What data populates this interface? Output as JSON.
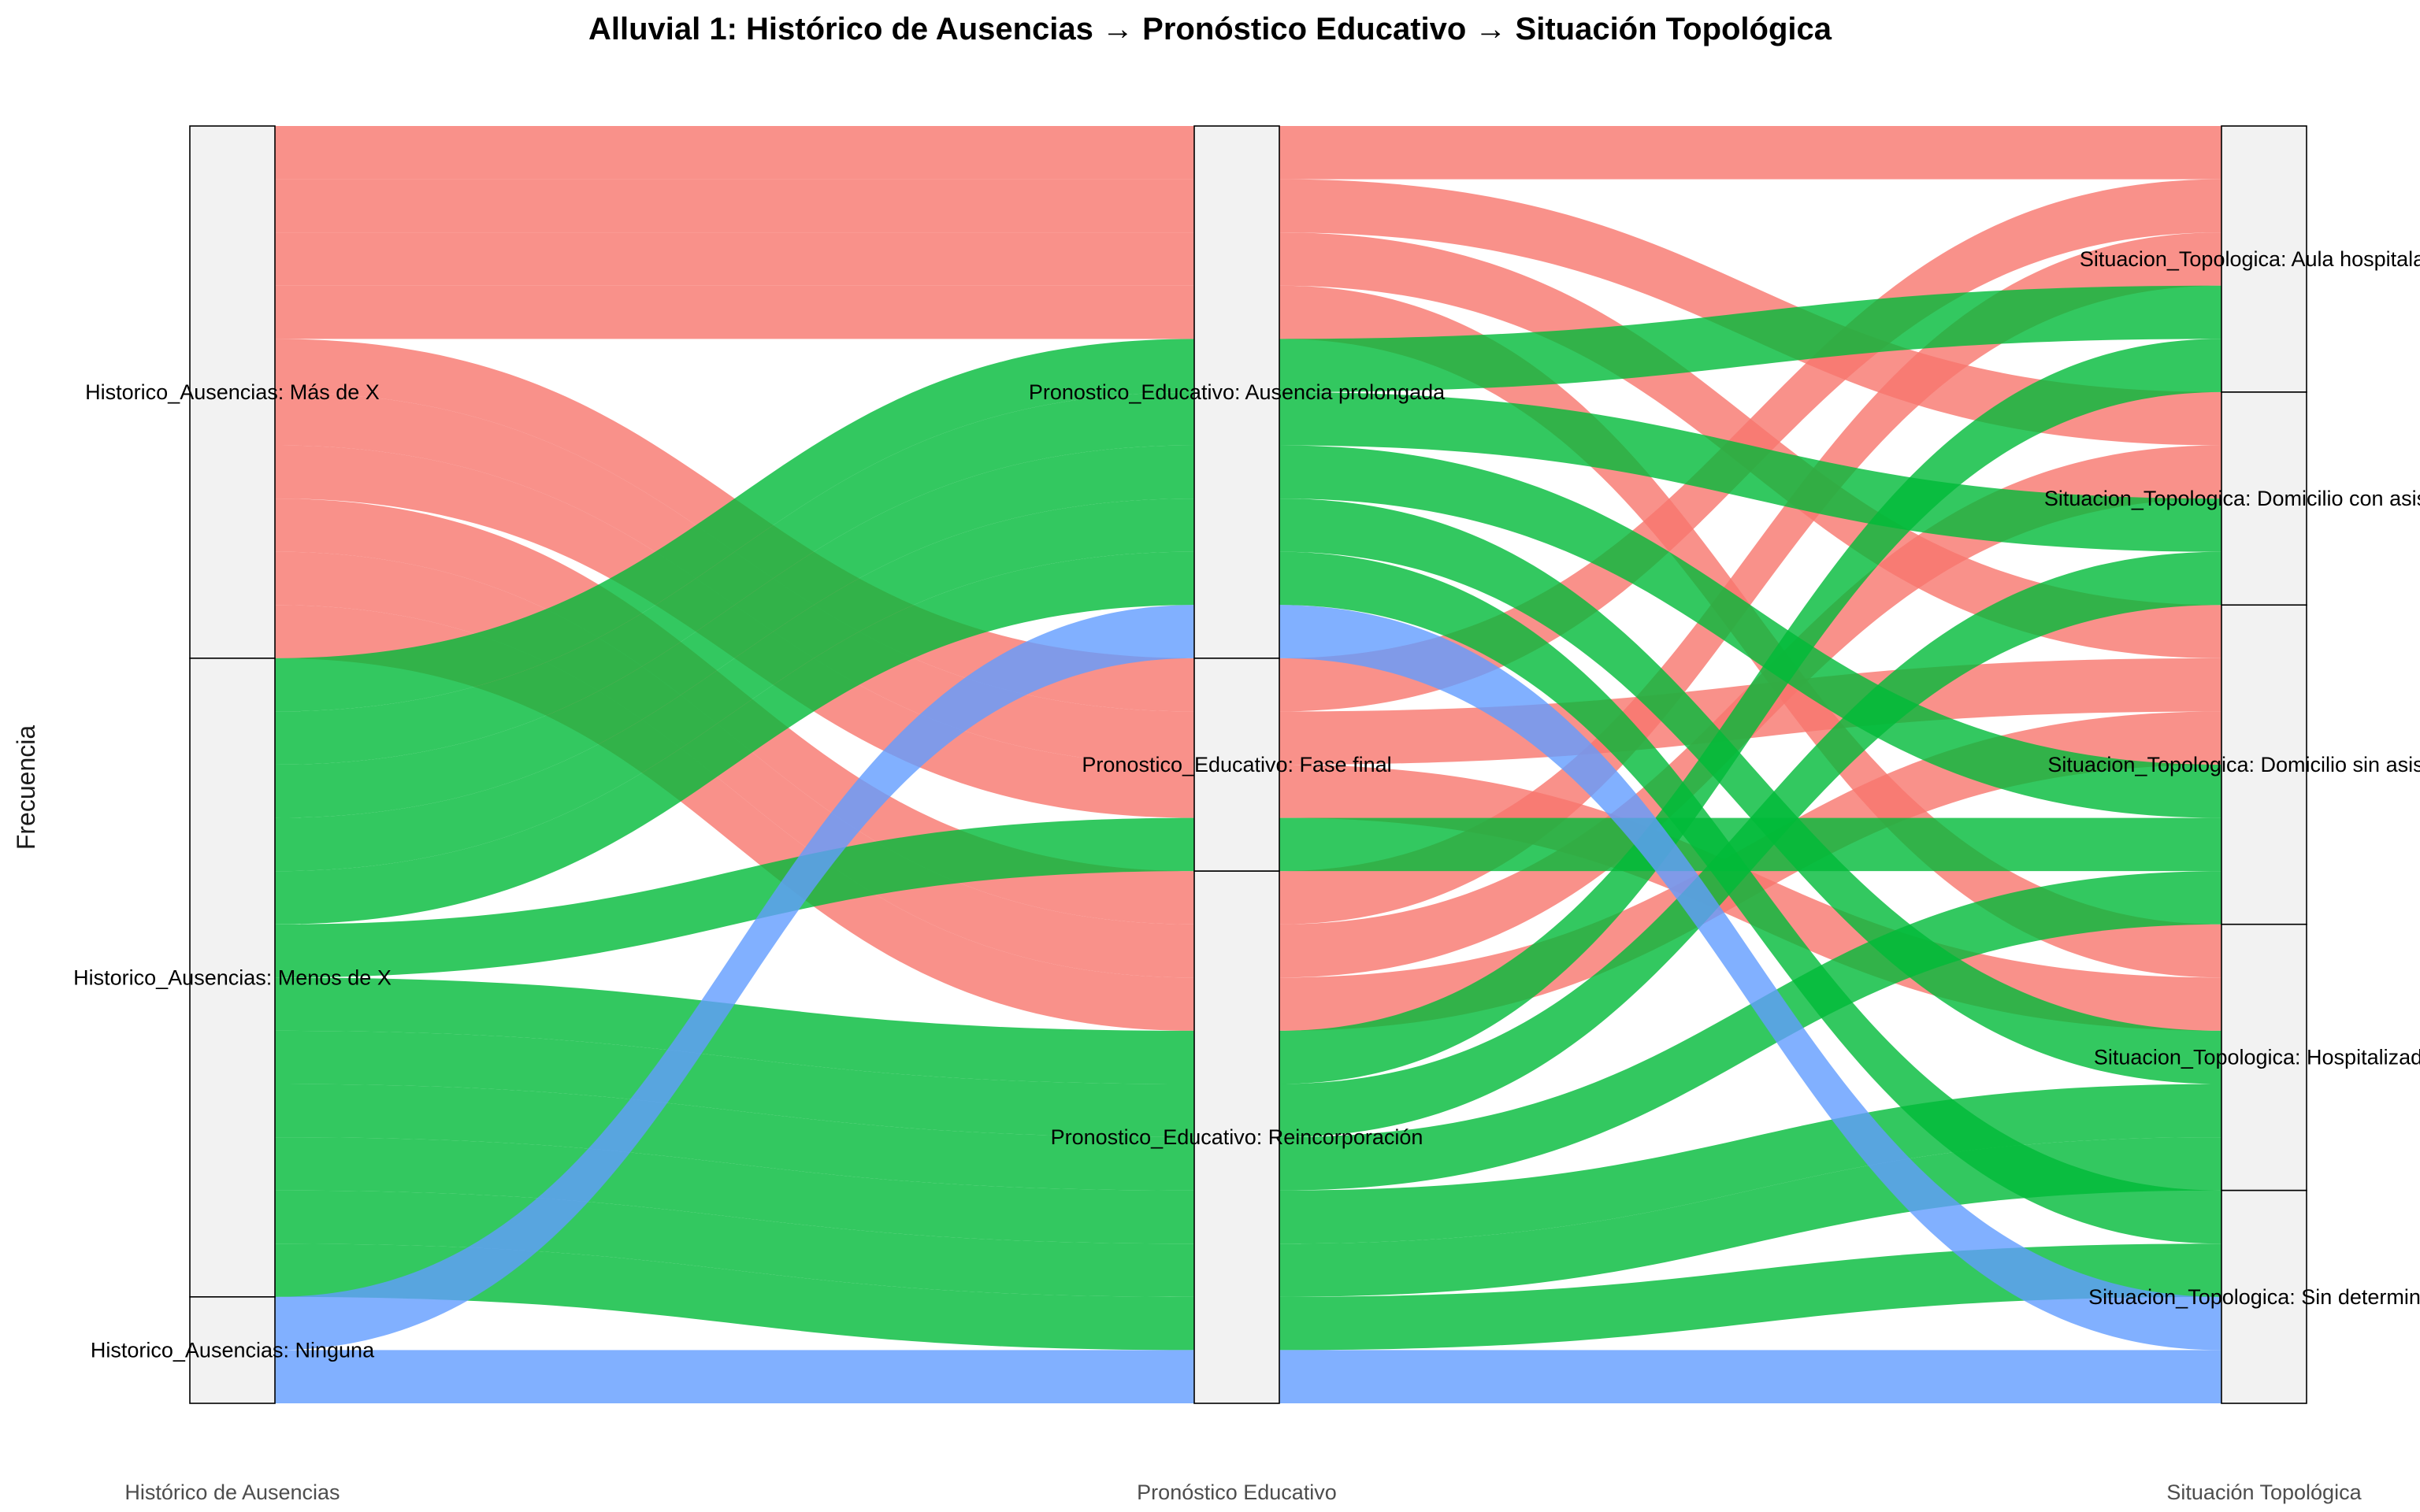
{
  "chart_data": {
    "type": "alluvial",
    "title": "Alluvial 1: Histórico de Ausencias → Pronóstico Educativo → Situación Topológica",
    "ylabel": "Frecuencia",
    "axes": [
      "Histórico de Ausencias",
      "Pronóstico Educativo",
      "Situación Topológica"
    ],
    "strata": [
      [
        "Historico_Ausencias: Más de X",
        "Historico_Ausencias: Menos de X",
        "Historico_Ausencias: Ninguna"
      ],
      [
        "Pronostico_Educativo: Ausencia prolongada",
        "Pronostico_Educativo: Fase final",
        "Pronostico_Educativo: Reincorporación"
      ],
      [
        "Situacion_Topologica: Aula hospitalaria",
        "Situacion_Topologica: Domicilio con asistencia",
        "Situacion_Topologica: Domicilio sin asistencia",
        "Situacion_Topologica: Hospitalizado",
        "Situacion_Topologica: Sin determinar"
      ]
    ],
    "colors": {
      "Más de X": "#F8766D",
      "Menos de X": "#00BA38",
      "Ninguna": "#619CFF"
    },
    "flows": [
      {
        "group": "Más de X",
        "path": [
          0,
          0,
          0
        ],
        "value": 1
      },
      {
        "group": "Más de X",
        "path": [
          0,
          0,
          1
        ],
        "value": 1
      },
      {
        "group": "Más de X",
        "path": [
          0,
          0,
          2
        ],
        "value": 1
      },
      {
        "group": "Más de X",
        "path": [
          0,
          0,
          3
        ],
        "value": 1
      },
      {
        "group": "Más de X",
        "path": [
          0,
          1,
          0
        ],
        "value": 1
      },
      {
        "group": "Más de X",
        "path": [
          0,
          1,
          2
        ],
        "value": 1
      },
      {
        "group": "Más de X",
        "path": [
          0,
          1,
          3
        ],
        "value": 1
      },
      {
        "group": "Más de X",
        "path": [
          0,
          2,
          0
        ],
        "value": 1
      },
      {
        "group": "Más de X",
        "path": [
          0,
          2,
          1
        ],
        "value": 1
      },
      {
        "group": "Más de X",
        "path": [
          0,
          2,
          2
        ],
        "value": 1
      },
      {
        "group": "Menos de X",
        "path": [
          1,
          0,
          0
        ],
        "value": 1
      },
      {
        "group": "Menos de X",
        "path": [
          1,
          0,
          1
        ],
        "value": 1
      },
      {
        "group": "Menos de X",
        "path": [
          1,
          0,
          2
        ],
        "value": 1
      },
      {
        "group": "Menos de X",
        "path": [
          1,
          0,
          3
        ],
        "value": 1
      },
      {
        "group": "Menos de X",
        "path": [
          1,
          0,
          4
        ],
        "value": 1
      },
      {
        "group": "Menos de X",
        "path": [
          1,
          1,
          2
        ],
        "value": 1
      },
      {
        "group": "Menos de X",
        "path": [
          1,
          2,
          0
        ],
        "value": 1
      },
      {
        "group": "Menos de X",
        "path": [
          1,
          2,
          1
        ],
        "value": 1
      },
      {
        "group": "Menos de X",
        "path": [
          1,
          2,
          2
        ],
        "value": 1
      },
      {
        "group": "Menos de X",
        "path": [
          1,
          2,
          3
        ],
        "value": 1
      },
      {
        "group": "Menos de X",
        "path": [
          1,
          2,
          3
        ],
        "value": 1
      },
      {
        "group": "Menos de X",
        "path": [
          1,
          2,
          4
        ],
        "value": 1
      },
      {
        "group": "Ninguna",
        "path": [
          2,
          0,
          4
        ],
        "value": 1
      },
      {
        "group": "Ninguna",
        "path": [
          2,
          2,
          4
        ],
        "value": 1
      }
    ]
  }
}
